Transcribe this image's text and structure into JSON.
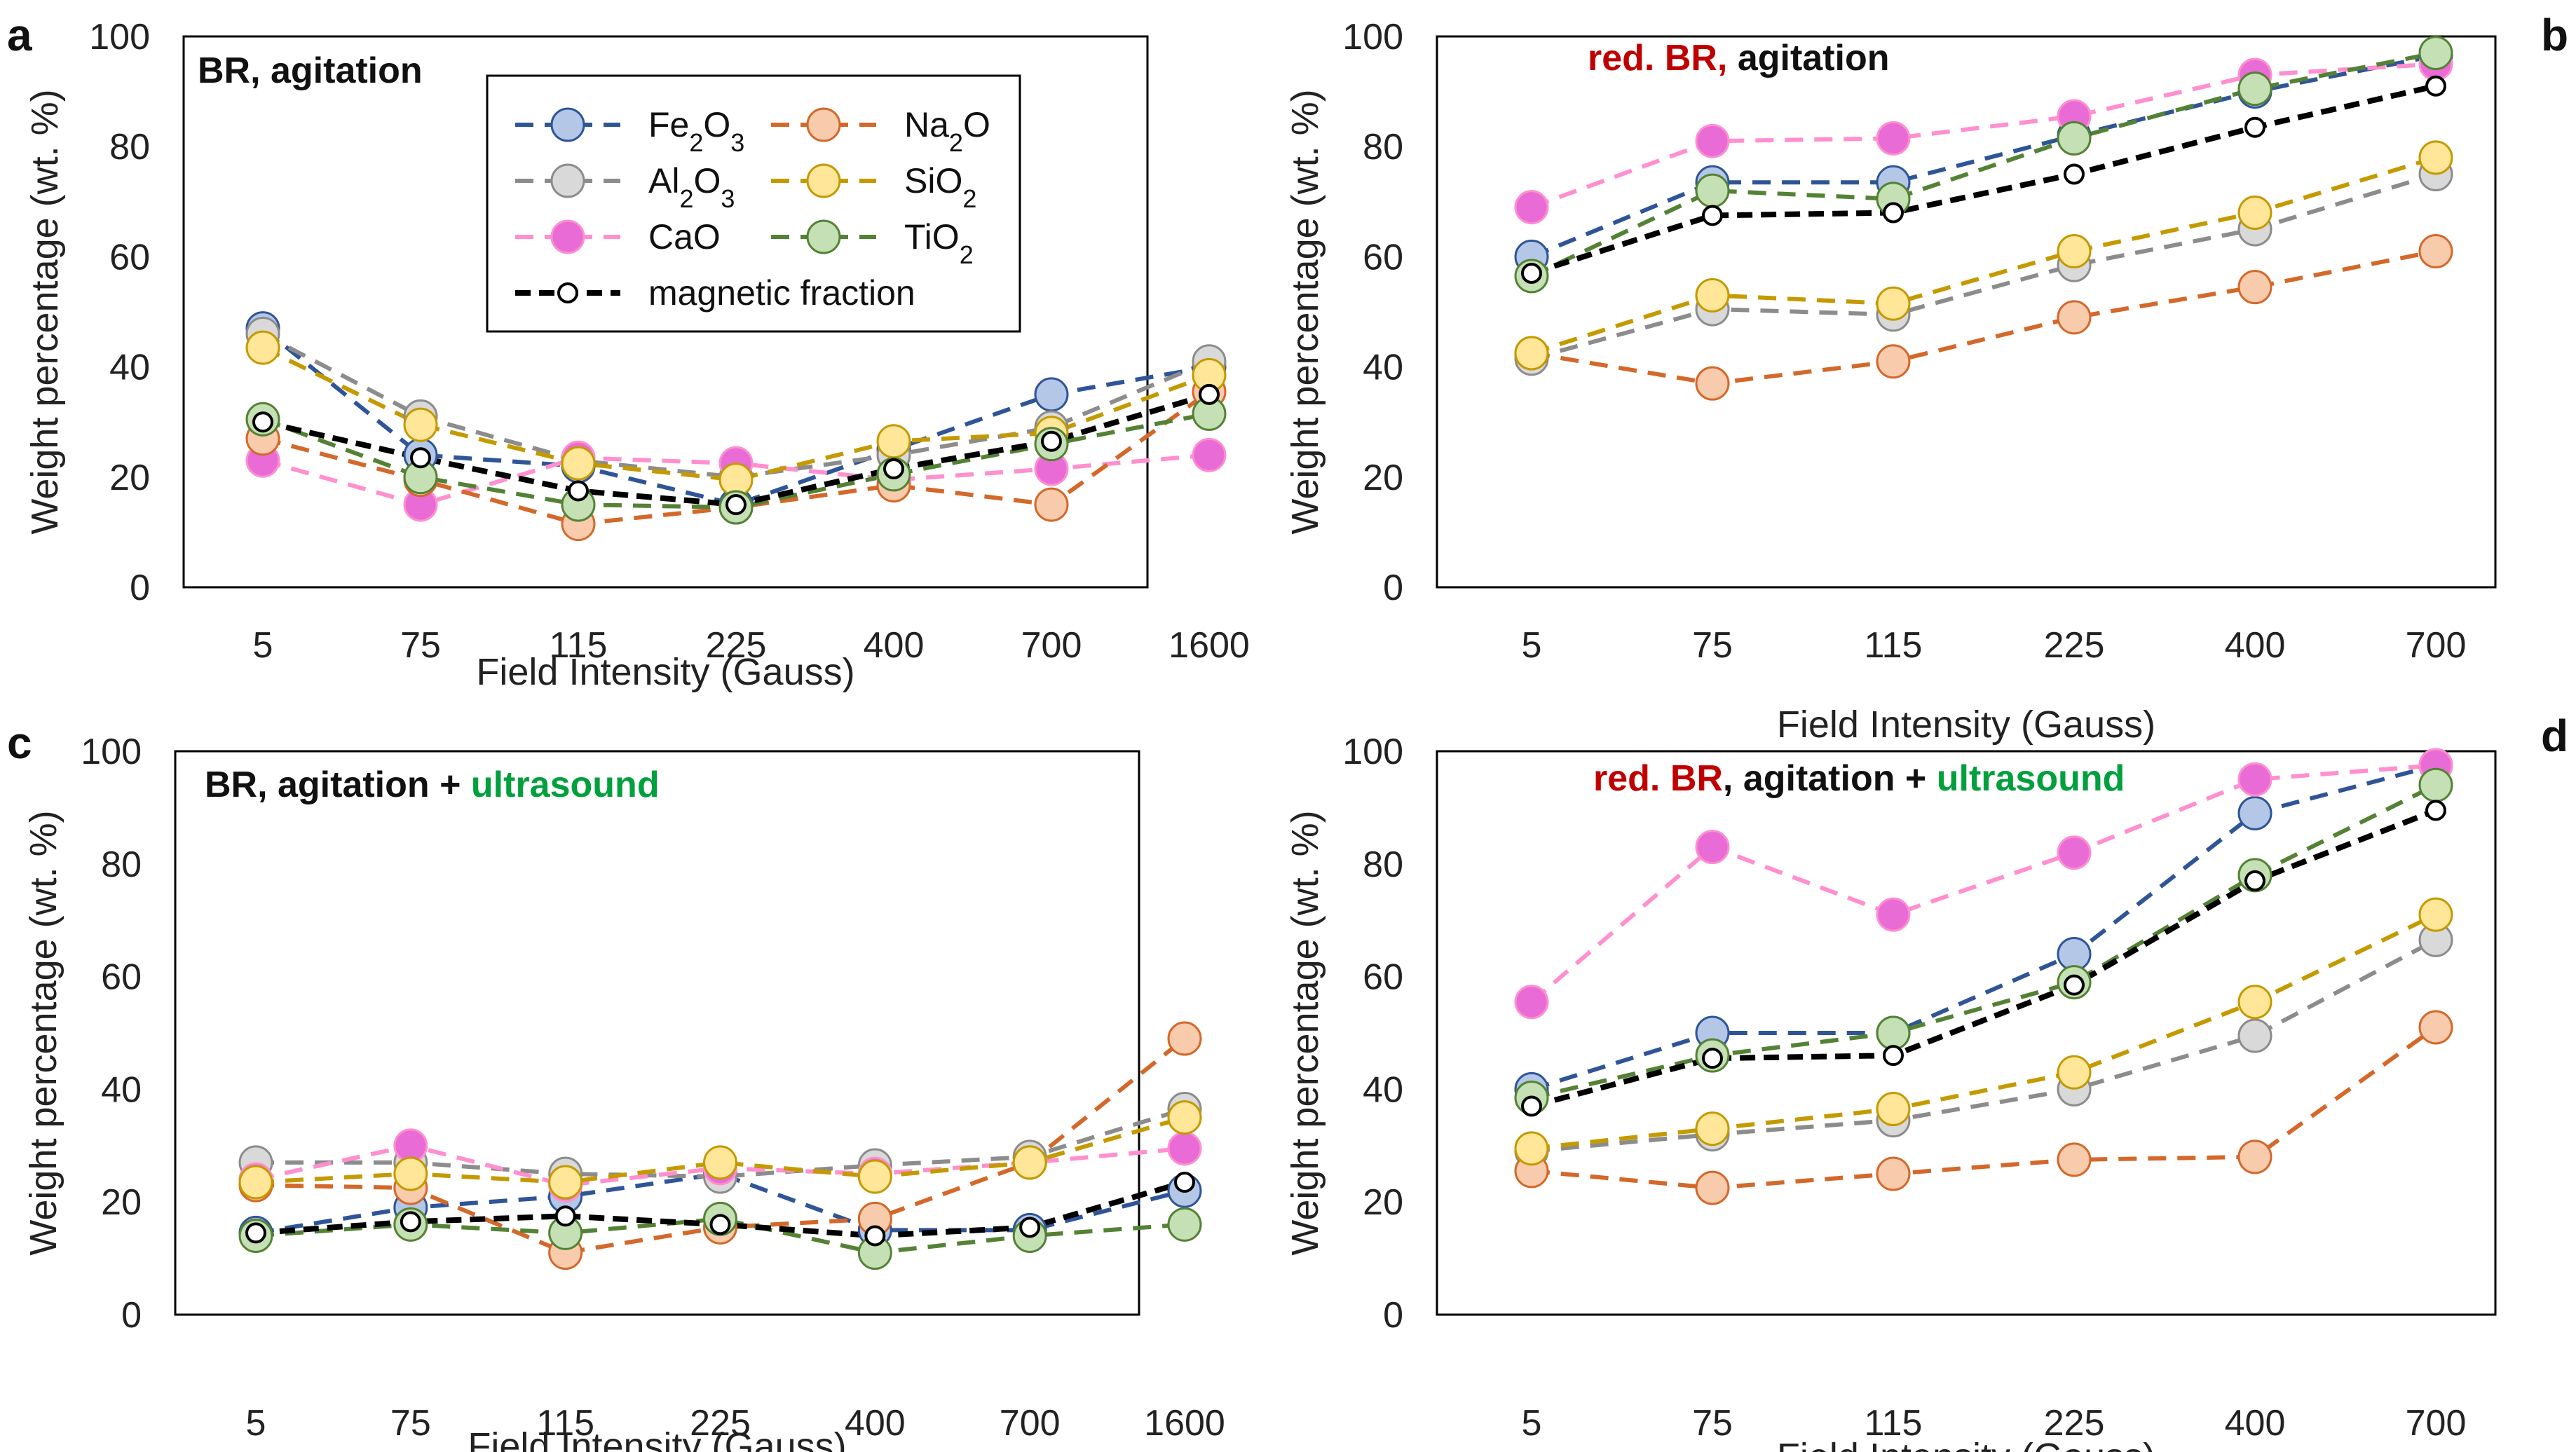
{
  "chart_data": [
    {
      "type": "line",
      "panel_label": "a",
      "title_parts": [
        {
          "text": "BR, agitation",
          "color": "#111111"
        }
      ],
      "categories": [
        "5",
        "75",
        "115",
        "225",
        "400",
        "700",
        "1600"
      ],
      "xlabel": "Field Intensity (Gauss)",
      "ylabel": "Weight percentage (wt. %)",
      "yticks": [
        "0",
        "20",
        "40",
        "60",
        "80",
        "100"
      ],
      "ylim": [
        0,
        100
      ],
      "legend": true,
      "series": [
        {
          "name": "Fe2O3",
          "label_main": "Fe",
          "label_sub1": "2",
          "label_mid": "O",
          "label_sub2": "3",
          "line": "#2f5597",
          "fill": "#b4c7e7",
          "values": [
            47,
            24,
            22,
            15,
            25,
            35,
            40
          ]
        },
        {
          "name": "Al2O3",
          "label_main": "Al",
          "label_sub1": "2",
          "label_mid": "O",
          "label_sub2": "3",
          "line": "#8c8c8c",
          "fill": "#d9d9d9",
          "values": [
            46,
            31,
            23,
            20,
            24,
            29,
            41
          ]
        },
        {
          "name": "CaO",
          "label_main": "CaO",
          "label_sub1": "",
          "label_mid": "",
          "label_sub2": "",
          "line": "#ff8fcf",
          "fill": "#e86bd6",
          "values": [
            23,
            15,
            23.5,
            22.5,
            19.5,
            21.5,
            24
          ]
        },
        {
          "name": "Na2O",
          "label_main": "Na",
          "label_sub1": "2",
          "label_mid": "O",
          "label_sub2": "",
          "line": "#d4682a",
          "fill": "#f8cbad",
          "values": [
            27,
            19.5,
            11.5,
            14.5,
            18.5,
            15,
            35.5
          ]
        },
        {
          "name": "SiO2",
          "label_main": "SiO",
          "label_sub1": "2",
          "label_mid": "",
          "label_sub2": "",
          "line": "#c49a00",
          "fill": "#ffe699",
          "values": [
            43.5,
            29.5,
            22.5,
            19.5,
            26.5,
            28,
            38.5
          ]
        },
        {
          "name": "TiO2",
          "label_main": "TiO",
          "label_sub1": "2",
          "label_mid": "",
          "label_sub2": "",
          "line": "#548235",
          "fill": "#c5e0b4",
          "values": [
            30.5,
            20,
            15,
            14.5,
            20.5,
            26,
            31.5
          ]
        },
        {
          "name": "magnetic fraction",
          "label_main": "magnetic fraction",
          "label_sub1": "",
          "label_mid": "",
          "label_sub2": "",
          "line": "#000000",
          "fill": "#ffffff",
          "small": true,
          "values": [
            30,
            23.5,
            17.5,
            15,
            21.5,
            26.5,
            35
          ]
        }
      ]
    },
    {
      "type": "line",
      "panel_label": "b",
      "title_parts": [
        {
          "text": "red. BR,",
          "color": "#c00000"
        },
        {
          "text": " agitation",
          "color": "#111111"
        }
      ],
      "categories": [
        "5",
        "75",
        "115",
        "225",
        "400",
        "700"
      ],
      "xlabel": "Field Intensity (Gauss)",
      "ylabel": "Weight percentage (wt. %)",
      "yticks": [
        "0",
        "20",
        "40",
        "60",
        "80",
        "100"
      ],
      "ylim": [
        0,
        100
      ],
      "legend": false,
      "series": [
        {
          "name": "Fe2O3",
          "line": "#2f5597",
          "fill": "#b4c7e7",
          "values": [
            60,
            73.5,
            73.5,
            82,
            90,
            96.5
          ]
        },
        {
          "name": "Al2O3",
          "line": "#8c8c8c",
          "fill": "#d9d9d9",
          "values": [
            41.5,
            50.5,
            49.5,
            58.5,
            65,
            75
          ]
        },
        {
          "name": "CaO",
          "line": "#ff8fcf",
          "fill": "#e86bd6",
          "values": [
            69,
            81,
            81.5,
            85.5,
            93,
            95
          ]
        },
        {
          "name": "Na2O",
          "line": "#d4682a",
          "fill": "#f8cbad",
          "values": [
            42.5,
            37,
            41,
            49,
            54.5,
            61
          ]
        },
        {
          "name": "SiO2",
          "line": "#c49a00",
          "fill": "#ffe699",
          "values": [
            42.5,
            53,
            51.5,
            61,
            68,
            78
          ]
        },
        {
          "name": "TiO2",
          "line": "#548235",
          "fill": "#c5e0b4",
          "values": [
            56.5,
            72,
            70.5,
            81.5,
            90.5,
            97
          ]
        },
        {
          "name": "magnetic fraction",
          "line": "#000000",
          "fill": "#ffffff",
          "small": true,
          "values": [
            57,
            67.5,
            68,
            75,
            83.5,
            91
          ]
        }
      ]
    },
    {
      "type": "line",
      "panel_label": "c",
      "title_parts": [
        {
          "text": "BR, agitation + ",
          "color": "#111111"
        },
        {
          "text": "ultrasound",
          "color": "#00a03c"
        }
      ],
      "categories": [
        "5",
        "75",
        "115",
        "225",
        "400",
        "700",
        "1600"
      ],
      "xlabel": "Field Intensity (Gauss)",
      "ylabel": "Weight percentage (wt. %)",
      "yticks": [
        "0",
        "20",
        "40",
        "60",
        "80",
        "100"
      ],
      "ylim": [
        0,
        100
      ],
      "legend": false,
      "series": [
        {
          "name": "Fe2O3",
          "line": "#2f5597",
          "fill": "#b4c7e7",
          "values": [
            14.5,
            19,
            21,
            25,
            15,
            15,
            22
          ]
        },
        {
          "name": "Al2O3",
          "line": "#8c8c8c",
          "fill": "#d9d9d9",
          "values": [
            27,
            27,
            25,
            24.5,
            26.5,
            28,
            36.5
          ]
        },
        {
          "name": "CaO",
          "line": "#ff8fcf",
          "fill": "#e86bd6",
          "values": [
            24,
            30,
            23,
            26,
            25,
            27,
            29.5
          ]
        },
        {
          "name": "Na2O",
          "line": "#d4682a",
          "fill": "#f8cbad",
          "values": [
            23,
            22.5,
            11,
            15.5,
            17,
            27,
            49
          ]
        },
        {
          "name": "SiO2",
          "line": "#c49a00",
          "fill": "#ffe699",
          "values": [
            23.5,
            25,
            23.5,
            27,
            24.5,
            27,
            35
          ]
        },
        {
          "name": "TiO2",
          "line": "#548235",
          "fill": "#c5e0b4",
          "values": [
            14,
            16,
            14.5,
            17,
            11,
            14,
            16
          ]
        },
        {
          "name": "magnetic fraction",
          "line": "#000000",
          "fill": "#ffffff",
          "small": true,
          "values": [
            14.5,
            16.5,
            17.5,
            16,
            14,
            15.5,
            23.5
          ]
        }
      ]
    },
    {
      "type": "line",
      "panel_label": "d",
      "title_parts": [
        {
          "text": "red. BR",
          "color": "#c00000"
        },
        {
          "text": ", agitation + ",
          "color": "#111111"
        },
        {
          "text": "ultrasound",
          "color": "#00a03c"
        }
      ],
      "categories": [
        "5",
        "75",
        "115",
        "225",
        "400",
        "700"
      ],
      "xlabel": "Field Intensity (Gauss)",
      "ylabel": "Weight percentage (wt. %)",
      "yticks": [
        "0",
        "20",
        "40",
        "60",
        "80",
        "100"
      ],
      "ylim": [
        0,
        100
      ],
      "legend": false,
      "series": [
        {
          "name": "Fe2O3",
          "line": "#2f5597",
          "fill": "#b4c7e7",
          "values": [
            40,
            50,
            50,
            64,
            89,
            97.5
          ]
        },
        {
          "name": "Al2O3",
          "line": "#8c8c8c",
          "fill": "#d9d9d9",
          "values": [
            29,
            32,
            34.5,
            40,
            49.5,
            66.5
          ]
        },
        {
          "name": "CaO",
          "line": "#ff8fcf",
          "fill": "#e86bd6",
          "values": [
            55.5,
            83,
            71,
            82,
            95,
            97.5
          ]
        },
        {
          "name": "Na2O",
          "line": "#d4682a",
          "fill": "#f8cbad",
          "values": [
            25.5,
            22.5,
            25,
            27.5,
            28,
            51
          ]
        },
        {
          "name": "SiO2",
          "line": "#c49a00",
          "fill": "#ffe699",
          "values": [
            29.5,
            33,
            36.5,
            43,
            55.5,
            71
          ]
        },
        {
          "name": "TiO2",
          "line": "#548235",
          "fill": "#c5e0b4",
          "values": [
            38.5,
            46,
            50,
            59,
            78,
            94
          ]
        },
        {
          "name": "magnetic fraction",
          "line": "#000000",
          "fill": "#ffffff",
          "small": true,
          "values": [
            37,
            45.5,
            46,
            58.5,
            77,
            89.5
          ]
        }
      ]
    }
  ]
}
